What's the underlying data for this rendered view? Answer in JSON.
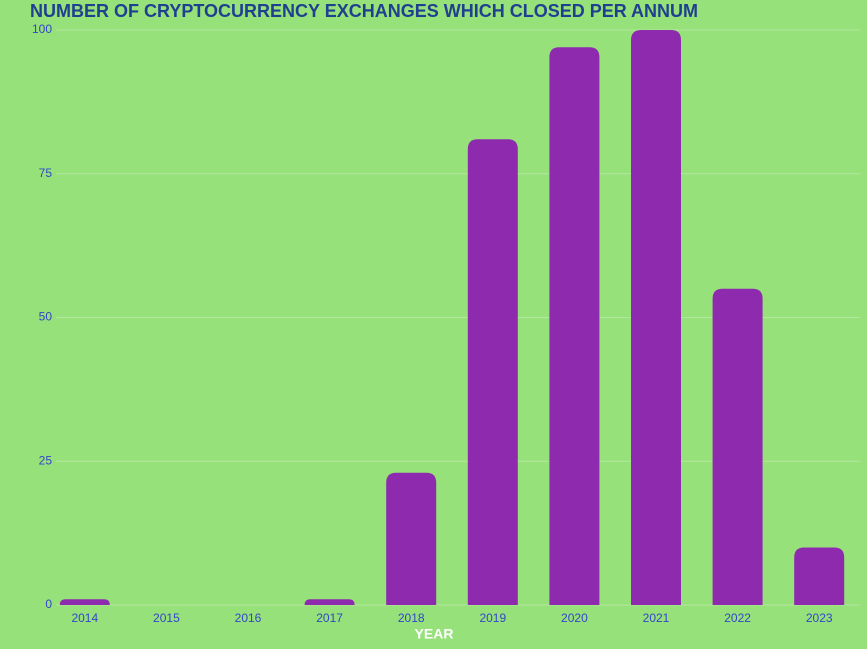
{
  "chart_data": {
    "type": "bar",
    "title": "NUMBER OF CRYPTOCURRENCY EXCHANGES WHICH CLOSED PER ANNUM",
    "x_label": "YEAR",
    "categories": [
      "2014",
      "2015",
      "2016",
      "2017",
      "2018",
      "2019",
      "2020",
      "2021",
      "2022",
      "2023"
    ],
    "values": [
      1,
      0,
      0,
      1,
      23,
      81,
      97,
      100,
      55,
      10
    ],
    "color": "#8e2aad",
    "ylim": [
      0,
      100
    ],
    "yticks": [
      0,
      25,
      50,
      75,
      100
    ],
    "grid": true
  }
}
